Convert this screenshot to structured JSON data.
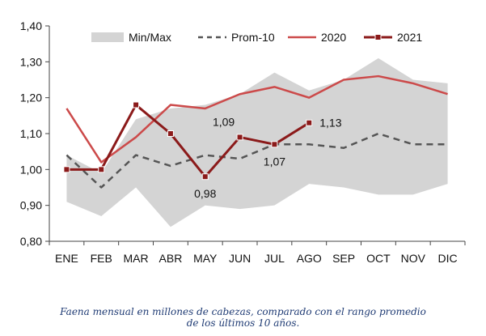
{
  "chart_data": {
    "type": "line",
    "categories": [
      "ENE",
      "FEB",
      "MAR",
      "ABR",
      "MAY",
      "JUN",
      "JUL",
      "AGO",
      "SEP",
      "OCT",
      "NOV",
      "DIC"
    ],
    "y_ticks": [
      "0,80",
      "0,90",
      "1,00",
      "1,10",
      "1,20",
      "1,30",
      "1,40"
    ],
    "ylim": [
      0.8,
      1.4
    ],
    "grid": false,
    "legend_position": "top",
    "band": {
      "name": "Min/Max",
      "color": "#d4d4d4",
      "min": [
        0.91,
        0.87,
        0.95,
        0.84,
        0.9,
        0.89,
        0.9,
        0.96,
        0.95,
        0.93,
        0.93,
        0.96
      ],
      "max": [
        1.04,
        0.99,
        1.14,
        1.17,
        1.18,
        1.21,
        1.27,
        1.22,
        1.25,
        1.31,
        1.25,
        1.24
      ]
    },
    "series": [
      {
        "name": "Prom-10",
        "color": "#555555",
        "style": "dashed",
        "values": [
          1.04,
          0.95,
          1.04,
          1.01,
          1.04,
          1.03,
          1.07,
          1.07,
          1.06,
          1.1,
          1.07,
          1.07
        ]
      },
      {
        "name": "2020",
        "color": "#cc4a4a",
        "style": "solid",
        "values": [
          1.17,
          1.02,
          1.09,
          1.18,
          1.17,
          1.21,
          1.23,
          1.2,
          1.25,
          1.26,
          1.24,
          1.21
        ]
      },
      {
        "name": "2021",
        "color": "#8b1a1a",
        "style": "solid-markers",
        "values": [
          1.0,
          1.0,
          1.18,
          1.1,
          0.98,
          1.09,
          1.07,
          1.13,
          null,
          null,
          null,
          null
        ]
      }
    ],
    "data_labels": [
      {
        "series": "2021",
        "category": "MAY",
        "text": "0,98",
        "position": "below"
      },
      {
        "series": "2021",
        "category": "JUN",
        "text": "1,09",
        "position": "above-left"
      },
      {
        "series": "2021",
        "category": "JUL",
        "text": "1,07",
        "position": "below"
      },
      {
        "series": "2021",
        "category": "AGO",
        "text": "1,13",
        "position": "right"
      }
    ]
  },
  "caption": {
    "line1": "Faena mensual en millones de cabezas, comparado con el rango promedio",
    "line2": "de los últimos 10 años."
  }
}
